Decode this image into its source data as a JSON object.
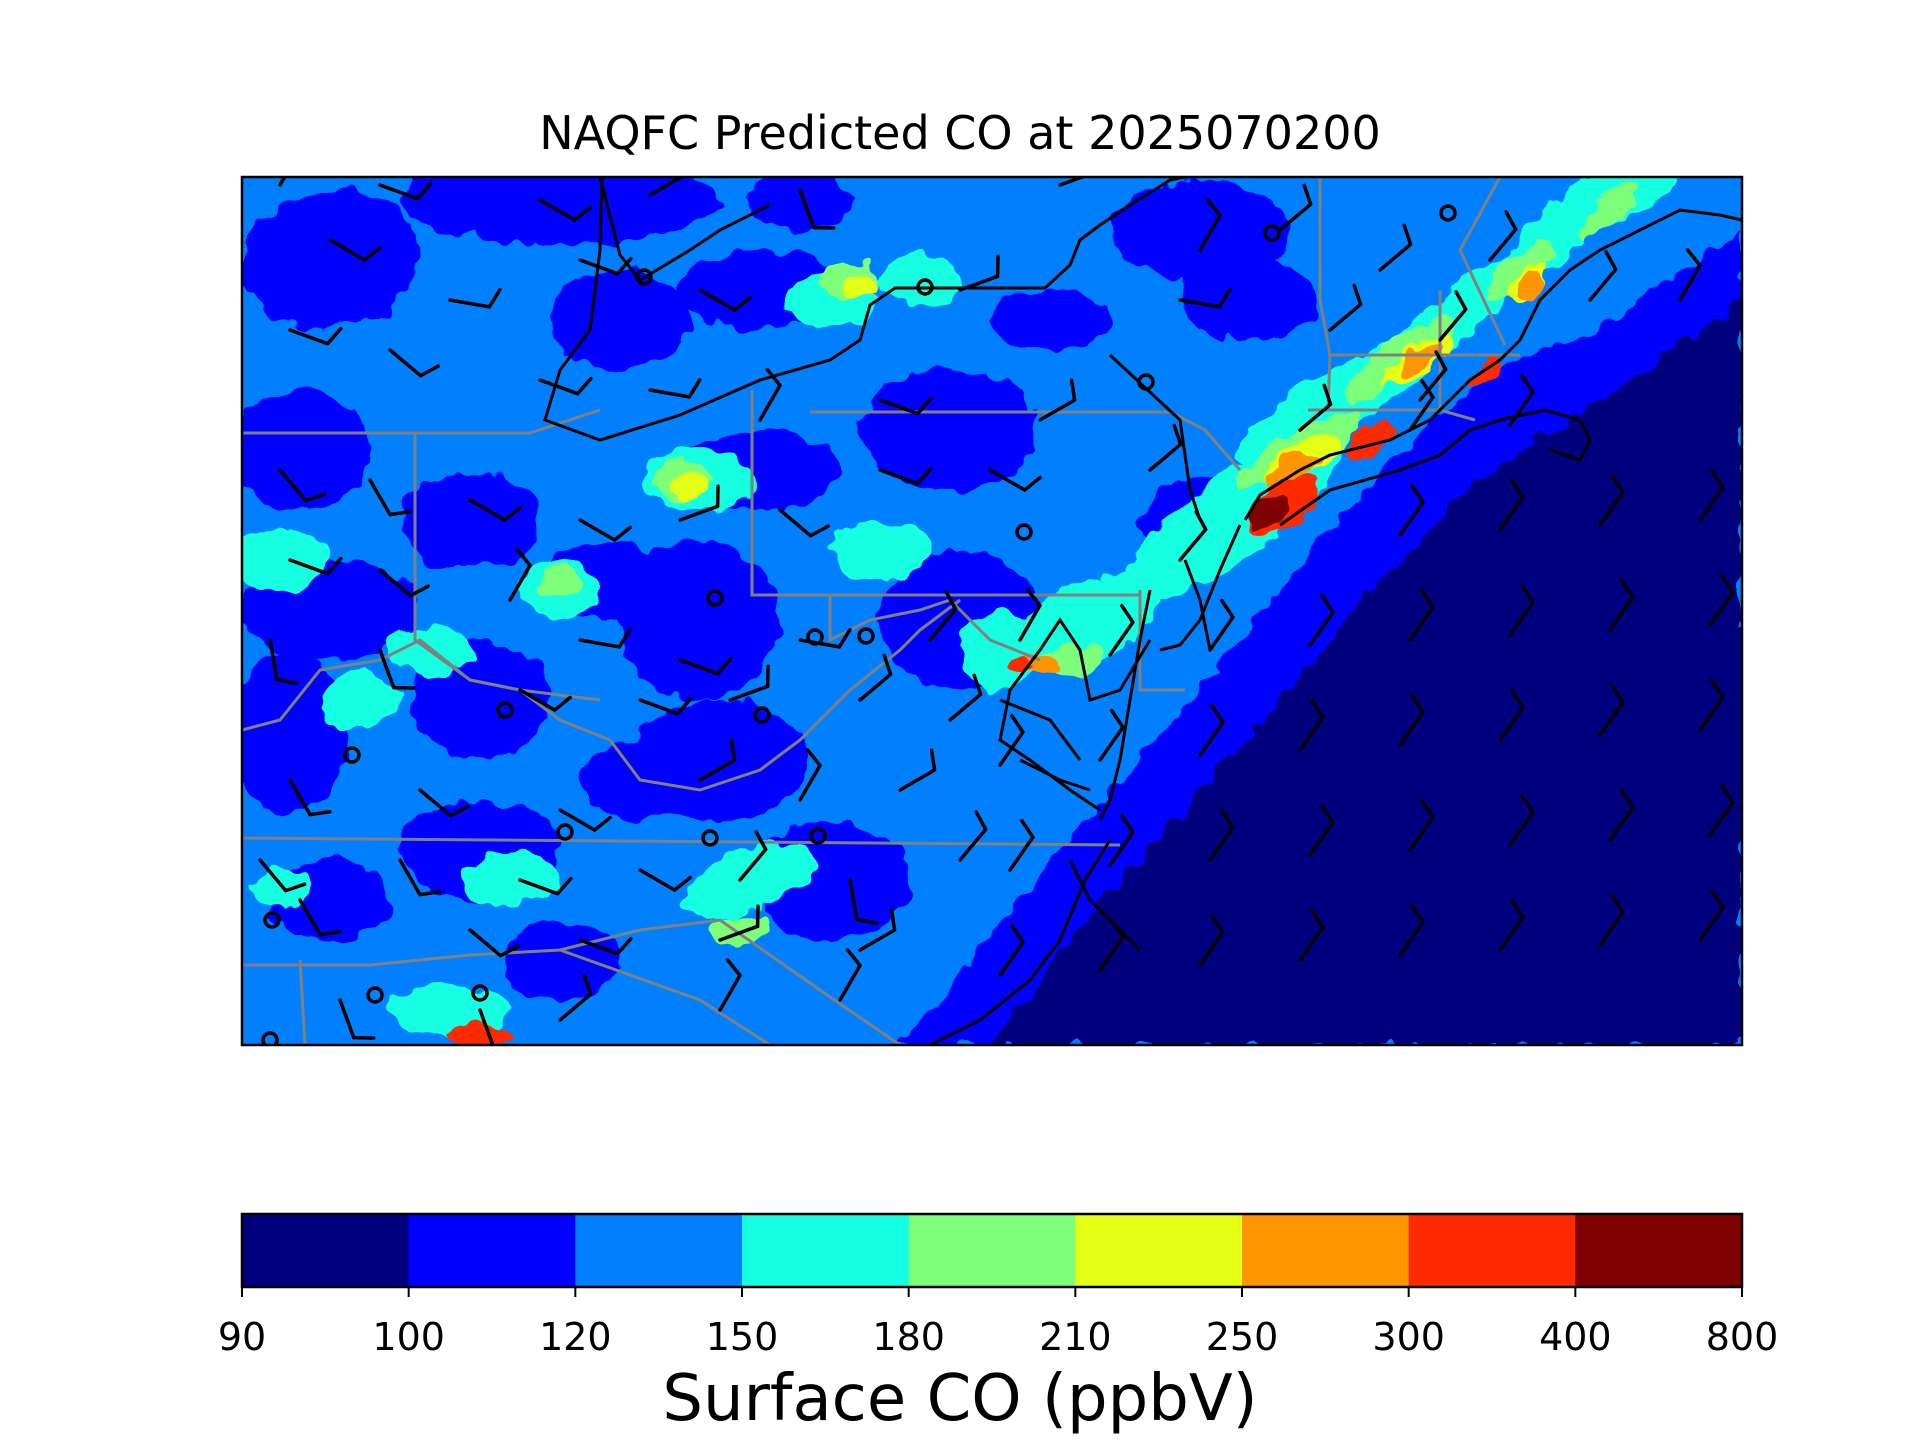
{
  "title": "NAQFC Predicted CO at 2025070200",
  "colorbar": {
    "label": "Surface CO (ppbV)",
    "bounds": [
      "90",
      "100",
      "120",
      "150",
      "180",
      "210",
      "250",
      "300",
      "400",
      "800"
    ],
    "colors": [
      "#00007f",
      "#0000ff",
      "#0080ff",
      "#15ffe1",
      "#7dff7a",
      "#e4ff13",
      "#ff9500",
      "#ff2a00",
      "#7f0000"
    ]
  },
  "colors": {
    "state_lines": "#808080",
    "coast_lines": "#000000",
    "wind_barbs": "#000000"
  }
}
